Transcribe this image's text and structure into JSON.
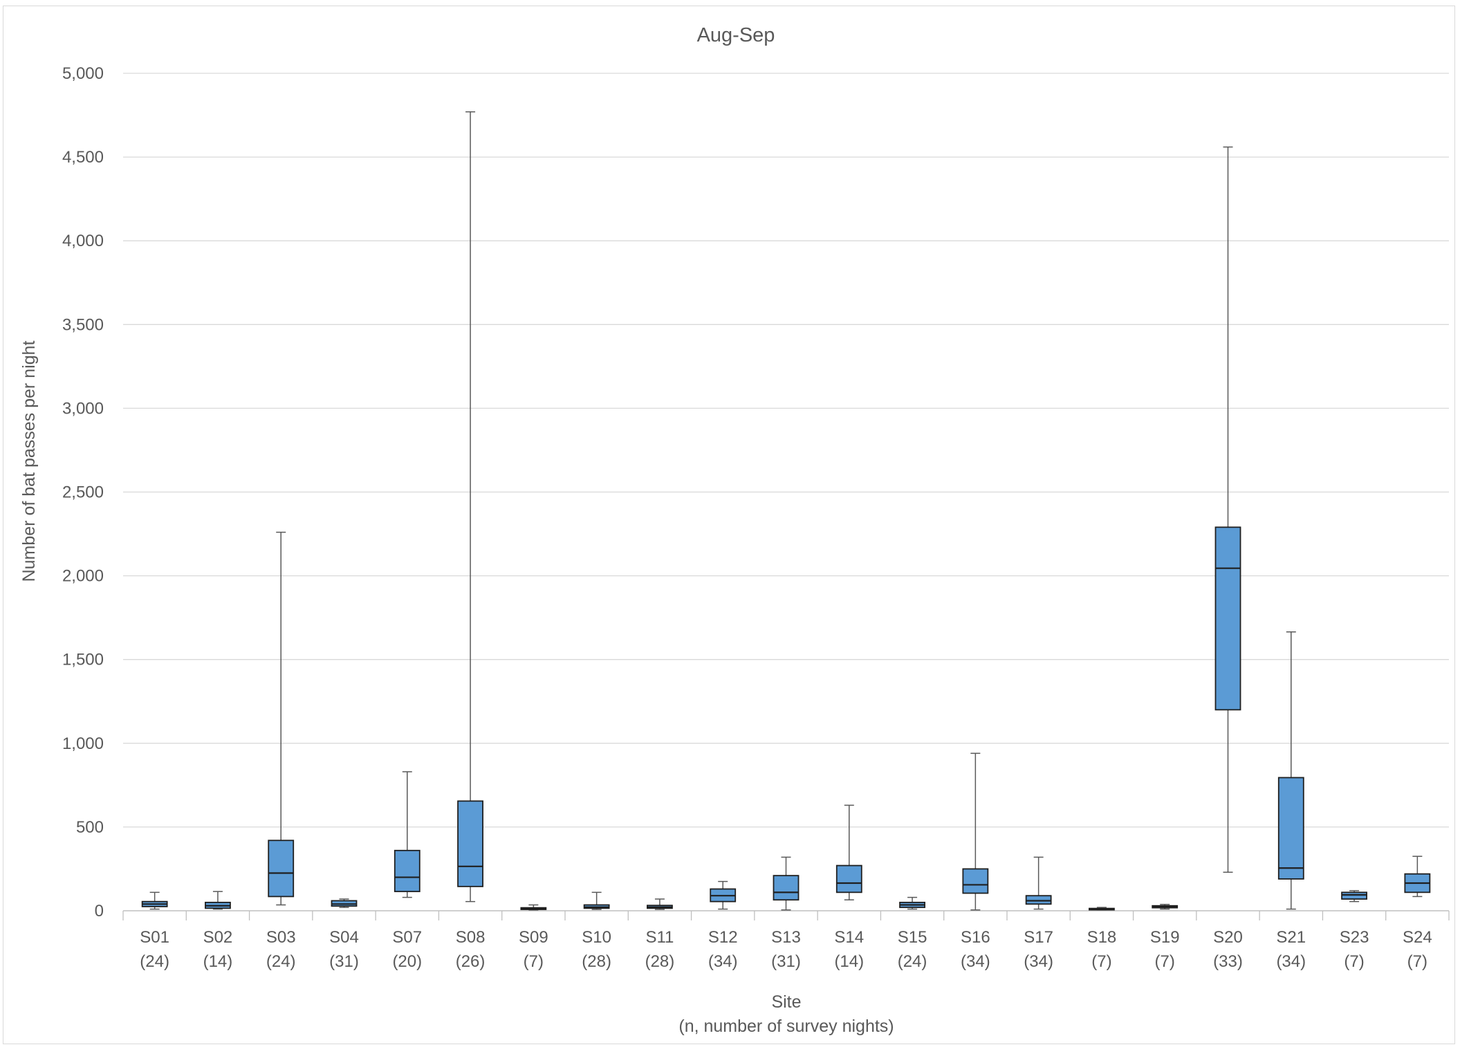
{
  "chart_data": {
    "type": "boxplot",
    "title": "Aug-Sep",
    "ylabel": "Number of bat passes per night",
    "xlabel": "Site",
    "xlabel_sub": "(n, number of survey nights)",
    "ylim": [
      0,
      5000
    ],
    "ytick_step": 500,
    "ytick_labels": [
      "0",
      "500",
      "1,000",
      "1,500",
      "2,000",
      "2,500",
      "3,000",
      "3,500",
      "4,000",
      "4,500",
      "5,000"
    ],
    "grid": true,
    "legend": "none",
    "box_color": "#5b9bd5",
    "categories": [
      {
        "site": "S01",
        "n": "(24)",
        "min": 10,
        "q1": 25,
        "median": 40,
        "q3": 55,
        "max": 110
      },
      {
        "site": "S02",
        "n": "(14)",
        "min": 10,
        "q1": 15,
        "median": 30,
        "q3": 50,
        "max": 115
      },
      {
        "site": "S03",
        "n": "(24)",
        "min": 35,
        "q1": 85,
        "median": 225,
        "q3": 420,
        "max": 2260
      },
      {
        "site": "S04",
        "n": "(31)",
        "min": 20,
        "q1": 28,
        "median": 40,
        "q3": 60,
        "max": 70
      },
      {
        "site": "S07",
        "n": "(20)",
        "min": 80,
        "q1": 115,
        "median": 200,
        "q3": 360,
        "max": 830
      },
      {
        "site": "S08",
        "n": "(26)",
        "min": 55,
        "q1": 145,
        "median": 265,
        "q3": 655,
        "max": 4770
      },
      {
        "site": "S09",
        "n": "(7)",
        "min": 5,
        "q1": 8,
        "median": 12,
        "q3": 18,
        "max": 35
      },
      {
        "site": "S10",
        "n": "(28)",
        "min": 8,
        "q1": 15,
        "median": 22,
        "q3": 35,
        "max": 110
      },
      {
        "site": "S11",
        "n": "(28)",
        "min": 8,
        "q1": 15,
        "median": 22,
        "q3": 32,
        "max": 70
      },
      {
        "site": "S12",
        "n": "(34)",
        "min": 10,
        "q1": 55,
        "median": 90,
        "q3": 130,
        "max": 175
      },
      {
        "site": "S13",
        "n": "(31)",
        "min": 5,
        "q1": 65,
        "median": 110,
        "q3": 210,
        "max": 320
      },
      {
        "site": "S14",
        "n": "(14)",
        "min": 65,
        "q1": 110,
        "median": 165,
        "q3": 270,
        "max": 630
      },
      {
        "site": "S15",
        "n": "(24)",
        "min": 10,
        "q1": 20,
        "median": 35,
        "q3": 50,
        "max": 80
      },
      {
        "site": "S16",
        "n": "(34)",
        "min": 5,
        "q1": 105,
        "median": 155,
        "q3": 250,
        "max": 940
      },
      {
        "site": "S17",
        "n": "(34)",
        "min": 10,
        "q1": 40,
        "median": 60,
        "q3": 90,
        "max": 320
      },
      {
        "site": "S18",
        "n": "(7)",
        "min": 5,
        "q1": 8,
        "median": 10,
        "q3": 14,
        "max": 20
      },
      {
        "site": "S19",
        "n": "(7)",
        "min": 10,
        "q1": 18,
        "median": 25,
        "q3": 30,
        "max": 38
      },
      {
        "site": "S20",
        "n": "(33)",
        "min": 230,
        "q1": 1200,
        "median": 2045,
        "q3": 2290,
        "max": 4560
      },
      {
        "site": "S21",
        "n": "(34)",
        "min": 10,
        "q1": 190,
        "median": 255,
        "q3": 795,
        "max": 1665
      },
      {
        "site": "S23",
        "n": "(7)",
        "min": 55,
        "q1": 70,
        "median": 95,
        "q3": 110,
        "max": 120
      },
      {
        "site": "S24",
        "n": "(7)",
        "min": 85,
        "q1": 110,
        "median": 165,
        "q3": 220,
        "max": 325
      }
    ]
  }
}
